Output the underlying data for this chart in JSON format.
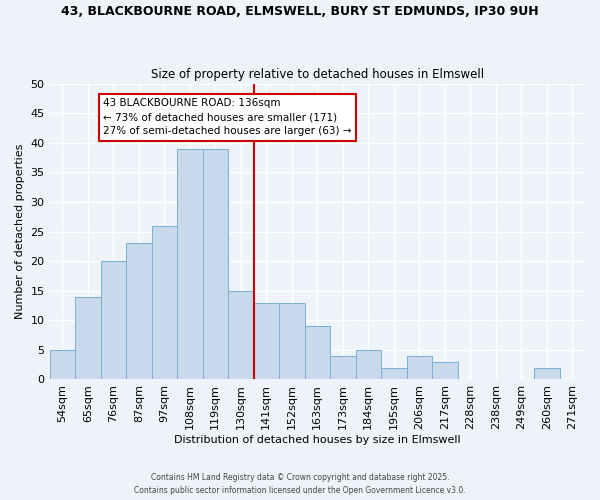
{
  "title_line1": "43, BLACKBOURNE ROAD, ELMSWELL, BURY ST EDMUNDS, IP30 9UH",
  "title_line2": "Size of property relative to detached houses in Elmswell",
  "xlabel": "Distribution of detached houses by size in Elmswell",
  "ylabel": "Number of detached properties",
  "bin_labels": [
    "54sqm",
    "65sqm",
    "76sqm",
    "87sqm",
    "97sqm",
    "108sqm",
    "119sqm",
    "130sqm",
    "141sqm",
    "152sqm",
    "163sqm",
    "173sqm",
    "184sqm",
    "195sqm",
    "206sqm",
    "217sqm",
    "228sqm",
    "238sqm",
    "249sqm",
    "260sqm",
    "271sqm"
  ],
  "bar_heights": [
    5,
    14,
    20,
    23,
    26,
    39,
    39,
    15,
    13,
    13,
    9,
    4,
    5,
    2,
    4,
    3,
    0,
    0,
    0,
    2,
    0
  ],
  "bar_color": "#c8d9ec",
  "bar_edge_color": "#7aafd4",
  "vline_x_index": 7.5,
  "vline_color": "#cc0000",
  "annotation_title": "43 BLACKBOURNE ROAD: 136sqm",
  "annotation_line2": "← 73% of detached houses are smaller (171)",
  "annotation_line3": "27% of semi-detached houses are larger (63) →",
  "annotation_box_edge": "#cc0000",
  "ylim": [
    0,
    50
  ],
  "yticks": [
    0,
    5,
    10,
    15,
    20,
    25,
    30,
    35,
    40,
    45,
    50
  ],
  "footnote1": "Contains HM Land Registry data © Crown copyright and database right 2025.",
  "footnote2": "Contains public sector information licensed under the Open Government Licence v3.0.",
  "bg_color": "#eef2f9",
  "grid_color": "#d0d8e8"
}
